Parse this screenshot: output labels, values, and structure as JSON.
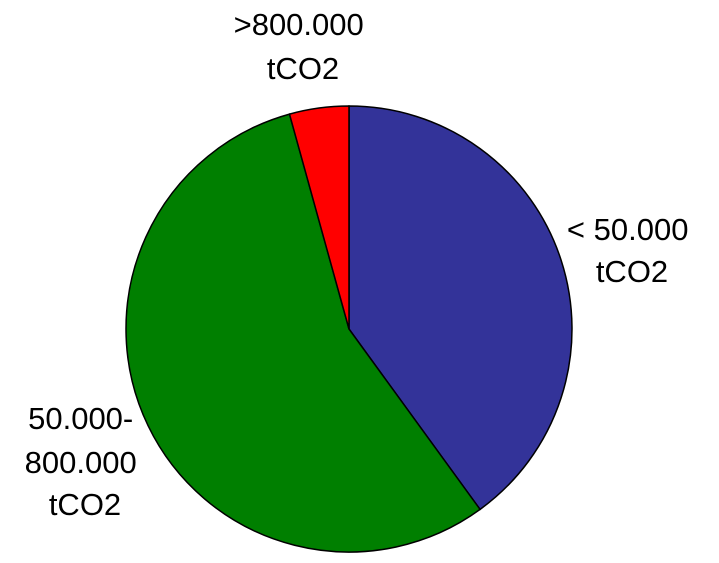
{
  "chart_data": {
    "type": "pie",
    "title": "",
    "slices": [
      {
        "label_lines": [
          "< 50.000",
          "tCO2"
        ],
        "value": 40.0,
        "color": "#333399"
      },
      {
        "label_lines": [
          "50.000-",
          "800.000",
          "tCO2"
        ],
        "value": 55.7,
        "color": "#007f00"
      },
      {
        "label_lines": [
          ">800.000",
          "tCO2"
        ],
        "value": 4.3,
        "color": "#ff0000"
      }
    ],
    "start_angle_deg": 0,
    "direction": "clockwise",
    "legend": "none"
  }
}
